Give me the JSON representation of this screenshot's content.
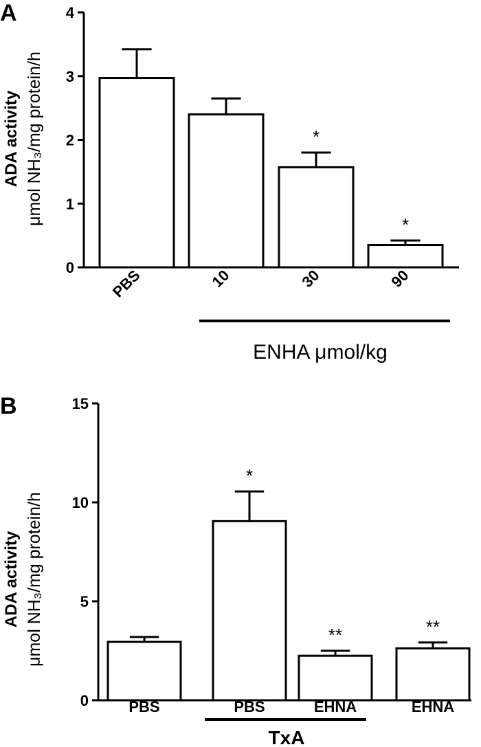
{
  "chart_data": [
    {
      "type": "bar",
      "panel": "A",
      "categories": [
        "PBS",
        "10",
        "30",
        "90"
      ],
      "values": [
        2.97,
        2.4,
        1.57,
        0.35
      ],
      "errors": [
        0.45,
        0.25,
        0.23,
        0.07
      ],
      "significance": [
        "",
        "",
        "*",
        "*"
      ],
      "ylim": [
        0,
        4
      ],
      "yticks": [
        "0",
        "1",
        "2",
        "3",
        "4"
      ],
      "ylabel_line1": "ADA activity",
      "ylabel_line2": "μmol NH₃/mg protein/h",
      "group_label": "ENHA μmol/kg",
      "grid": false
    },
    {
      "type": "bar",
      "panel": "B",
      "categories": [
        "PBS",
        "PBS",
        "EHNA",
        "EHNA"
      ],
      "values": [
        2.95,
        9.05,
        2.25,
        2.62
      ],
      "errors": [
        0.25,
        1.5,
        0.25,
        0.3
      ],
      "significance": [
        "",
        "*",
        "**",
        "**"
      ],
      "ylim": [
        0,
        15
      ],
      "yticks": [
        "0",
        "5",
        "10",
        "15"
      ],
      "ylabel_line1": "ADA activity",
      "ylabel_line2": "μmol NH₃/mg protein/h",
      "group_label": "TxA",
      "grid": false
    }
  ]
}
